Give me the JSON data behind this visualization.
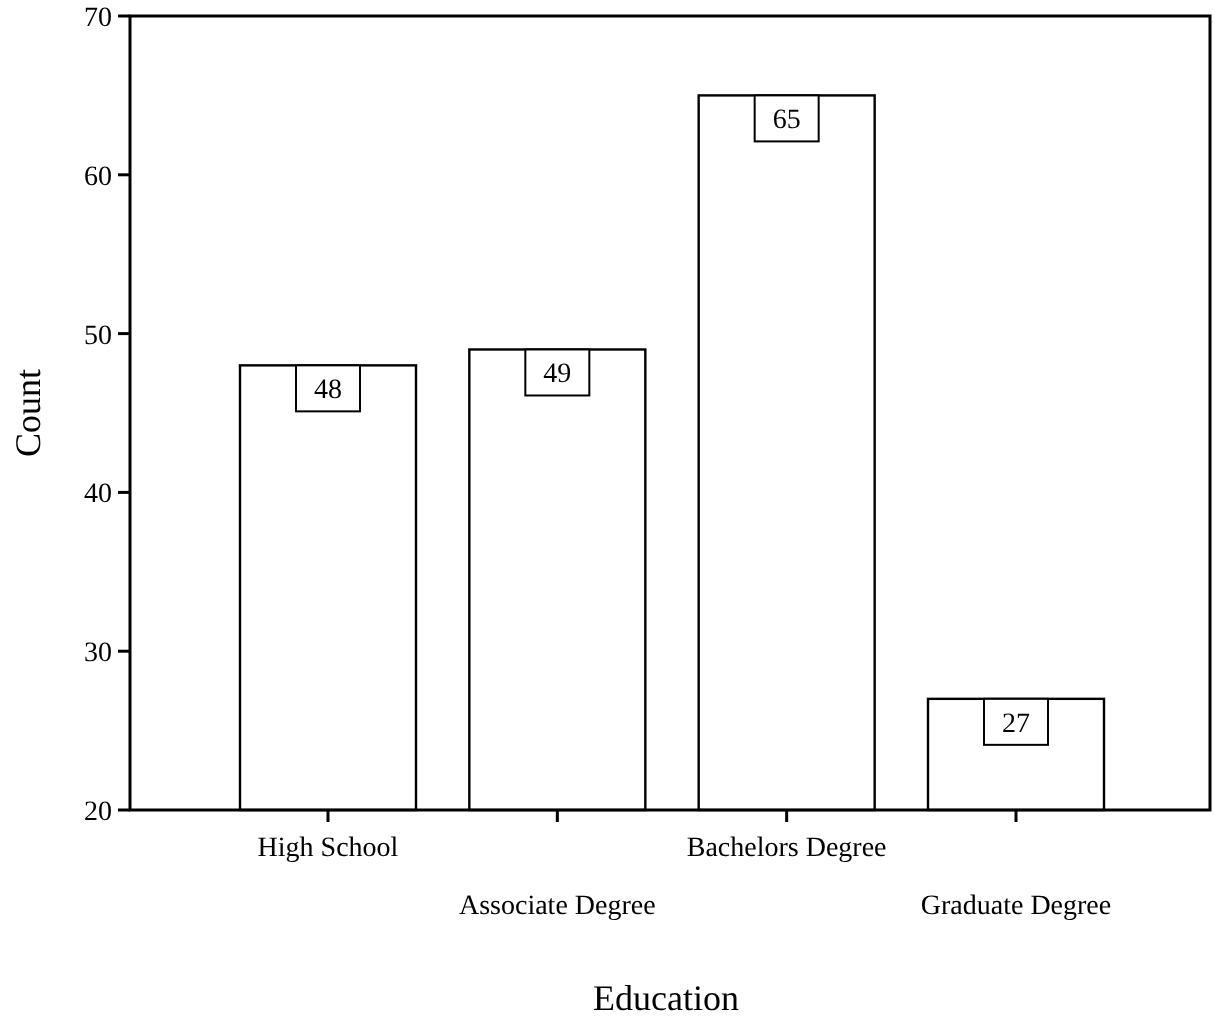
{
  "chart_data": {
    "type": "bar",
    "xlabel": "Education",
    "ylabel": "Count",
    "categories": [
      "High School",
      "Associate Degree",
      "Bachelors Degree",
      "Graduate Degree"
    ],
    "values": [
      48,
      49,
      65,
      27
    ],
    "color": "#ffffff",
    "ylim": [
      20,
      70
    ],
    "yticks": [
      20,
      30,
      40,
      50,
      60,
      70
    ],
    "data_labels": true
  }
}
